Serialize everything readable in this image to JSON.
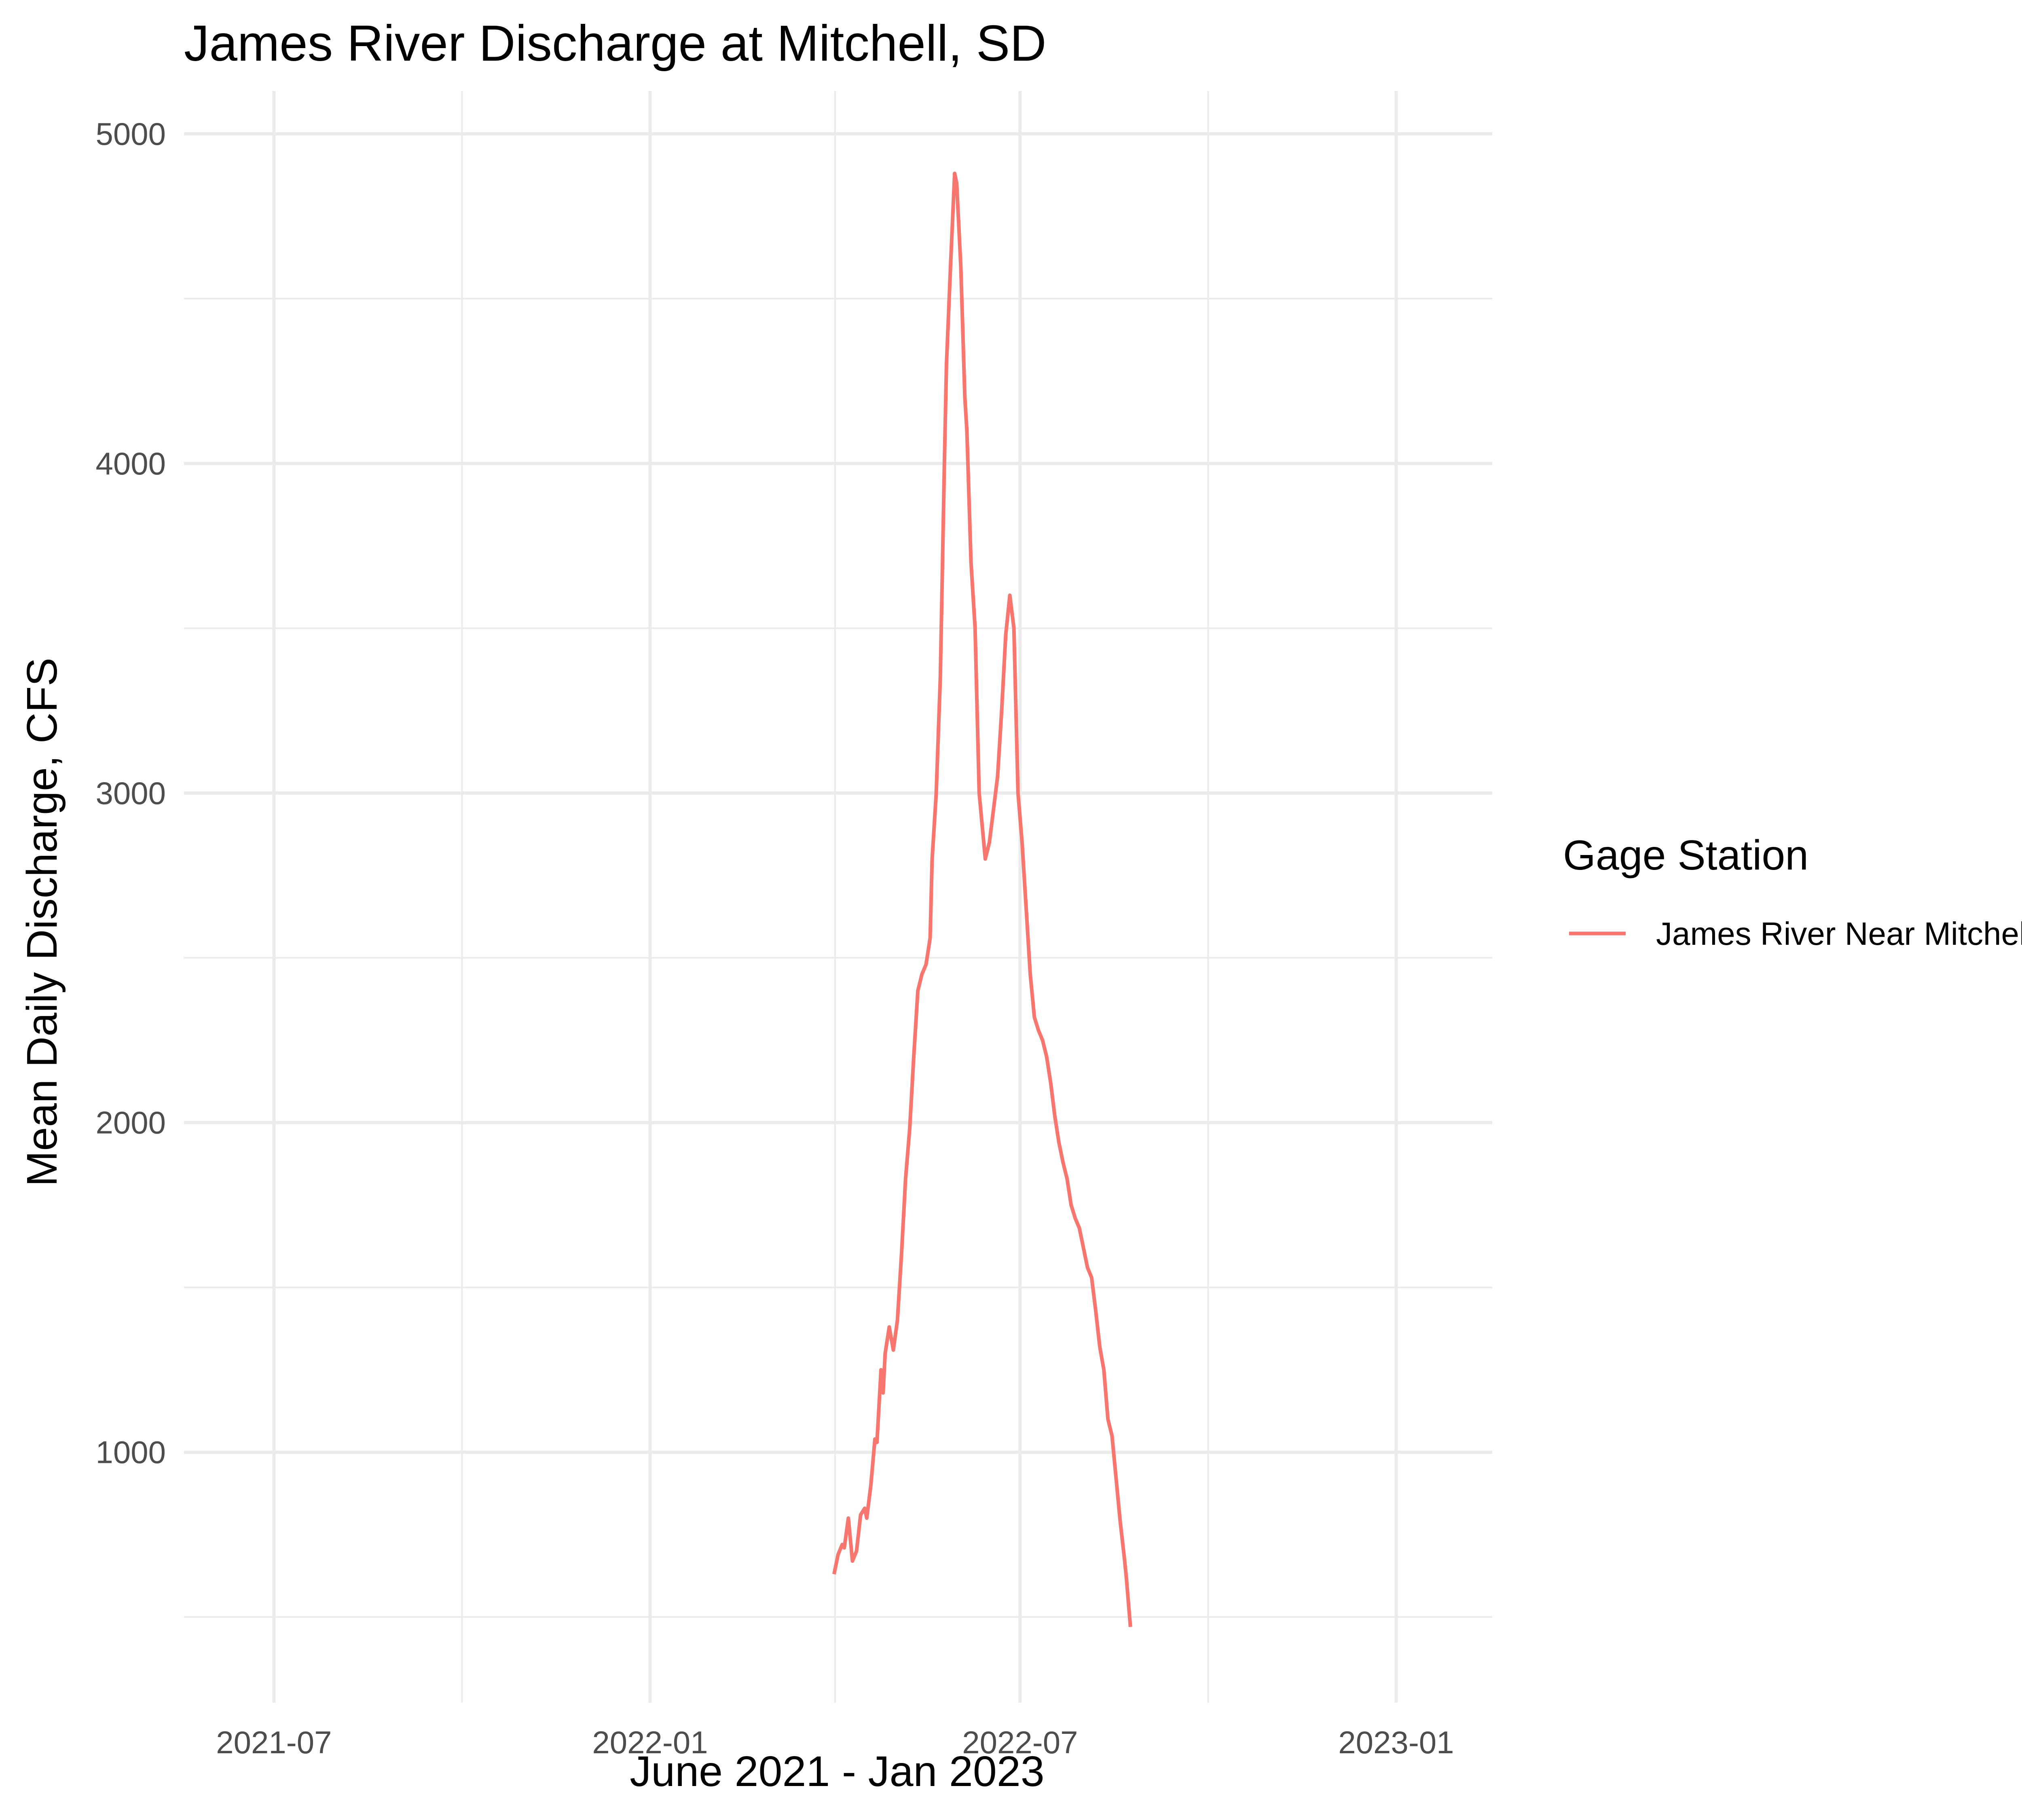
{
  "chart_data": {
    "type": "line",
    "title": "James River Discharge at Mitchell, SD",
    "xlabel": "June 2021 - Jan 2023",
    "ylabel": "Mean Daily Discharge, CFS",
    "x_axis": "date",
    "xlim": [
      "2021-05-18",
      "2023-02-17"
    ],
    "ylim": [
      240,
      5130
    ],
    "x_ticks": [
      "2021-07-01",
      "2022-01-01",
      "2022-07-01",
      "2023-01-01"
    ],
    "x_tick_labels": [
      "2021-07",
      "2022-01",
      "2022-07",
      "2023-01"
    ],
    "y_ticks": [
      1000,
      2000,
      3000,
      4000,
      5000
    ],
    "y_tick_labels": [
      "1000",
      "2000",
      "3000",
      "4000",
      "5000"
    ],
    "grid": true,
    "legend": {
      "title": "Gage Station",
      "position": "right"
    },
    "series": [
      {
        "name": "James River Near Mitchell",
        "color": "#F8766D",
        "points": [
          [
            "2022-04-01",
            630
          ],
          [
            "2022-04-03",
            690
          ],
          [
            "2022-04-05",
            720
          ],
          [
            "2022-04-06",
            710
          ],
          [
            "2022-04-08",
            800
          ],
          [
            "2022-04-10",
            670
          ],
          [
            "2022-04-12",
            700
          ],
          [
            "2022-04-14",
            810
          ],
          [
            "2022-04-16",
            830
          ],
          [
            "2022-04-17",
            800
          ],
          [
            "2022-04-19",
            900
          ],
          [
            "2022-04-21",
            1040
          ],
          [
            "2022-04-22",
            1030
          ],
          [
            "2022-04-24",
            1250
          ],
          [
            "2022-04-25",
            1180
          ],
          [
            "2022-04-26",
            1300
          ],
          [
            "2022-04-28",
            1380
          ],
          [
            "2022-04-30",
            1310
          ],
          [
            "2022-05-02",
            1400
          ],
          [
            "2022-05-04",
            1600
          ],
          [
            "2022-05-06",
            1830
          ],
          [
            "2022-05-08",
            1980
          ],
          [
            "2022-05-10",
            2200
          ],
          [
            "2022-05-12",
            2400
          ],
          [
            "2022-05-14",
            2450
          ],
          [
            "2022-05-16",
            2480
          ],
          [
            "2022-05-18",
            2560
          ],
          [
            "2022-05-19",
            2800
          ],
          [
            "2022-05-21",
            3000
          ],
          [
            "2022-05-23",
            3350
          ],
          [
            "2022-05-25",
            4000
          ],
          [
            "2022-05-26",
            4300
          ],
          [
            "2022-05-28",
            4600
          ],
          [
            "2022-05-30",
            4880
          ],
          [
            "2022-05-31",
            4850
          ],
          [
            "2022-06-02",
            4600
          ],
          [
            "2022-06-04",
            4200
          ],
          [
            "2022-06-05",
            4100
          ],
          [
            "2022-06-07",
            3700
          ],
          [
            "2022-06-09",
            3500
          ],
          [
            "2022-06-11",
            3000
          ],
          [
            "2022-06-14",
            2800
          ],
          [
            "2022-06-16",
            2850
          ],
          [
            "2022-06-18",
            2950
          ],
          [
            "2022-06-20",
            3050
          ],
          [
            "2022-06-22",
            3250
          ],
          [
            "2022-06-24",
            3480
          ],
          [
            "2022-06-26",
            3600
          ],
          [
            "2022-06-28",
            3500
          ],
          [
            "2022-06-30",
            3000
          ],
          [
            "2022-07-02",
            2850
          ],
          [
            "2022-07-04",
            2650
          ],
          [
            "2022-07-06",
            2450
          ],
          [
            "2022-07-08",
            2320
          ],
          [
            "2022-07-10",
            2280
          ],
          [
            "2022-07-12",
            2250
          ],
          [
            "2022-07-14",
            2200
          ],
          [
            "2022-07-16",
            2120
          ],
          [
            "2022-07-18",
            2020
          ],
          [
            "2022-07-20",
            1940
          ],
          [
            "2022-07-22",
            1880
          ],
          [
            "2022-07-24",
            1830
          ],
          [
            "2022-07-26",
            1750
          ],
          [
            "2022-07-28",
            1710
          ],
          [
            "2022-07-30",
            1680
          ],
          [
            "2022-08-01",
            1620
          ],
          [
            "2022-08-03",
            1560
          ],
          [
            "2022-08-05",
            1530
          ],
          [
            "2022-08-07",
            1430
          ],
          [
            "2022-08-09",
            1320
          ],
          [
            "2022-08-11",
            1250
          ],
          [
            "2022-08-13",
            1100
          ],
          [
            "2022-08-15",
            1050
          ],
          [
            "2022-08-17",
            920
          ],
          [
            "2022-08-19",
            790
          ],
          [
            "2022-08-21",
            680
          ],
          [
            "2022-08-22",
            620
          ],
          [
            "2022-08-24",
            470
          ]
        ]
      }
    ]
  }
}
